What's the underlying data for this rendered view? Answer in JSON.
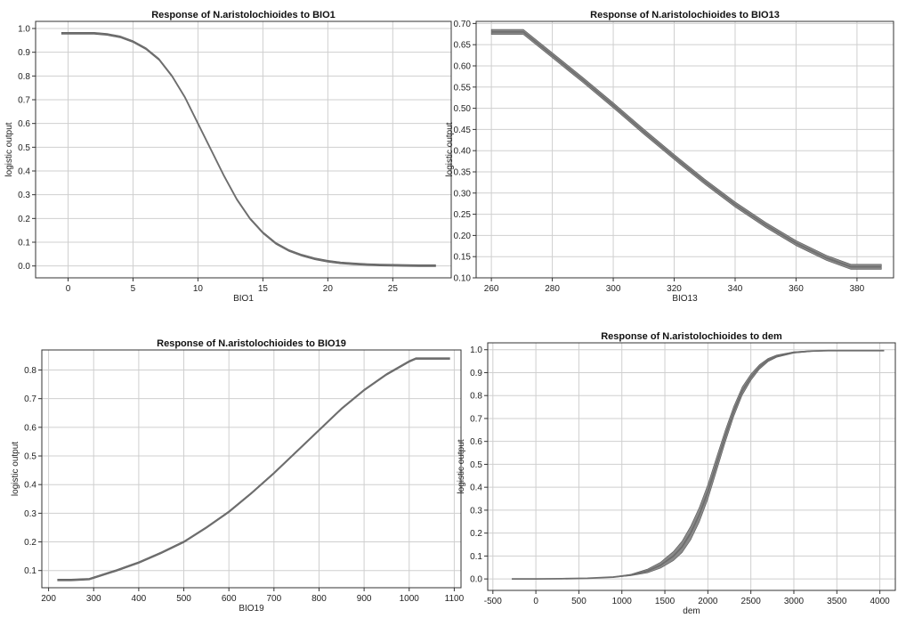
{
  "chart_data": [
    {
      "type": "line",
      "title": "Response of N.aristolochioides to BIO1",
      "xlabel": "BIO1",
      "ylabel": "logistic output",
      "xlim": [
        -2.5,
        29.5
      ],
      "ylim": [
        -0.05,
        1.03
      ],
      "xticks": [
        0,
        5,
        10,
        15,
        20,
        25
      ],
      "yticks": [
        0.0,
        0.1,
        0.2,
        0.3,
        0.4,
        0.5,
        0.6,
        0.7,
        0.8,
        0.9,
        1.0
      ],
      "ytick_decimals": 1,
      "grid": true,
      "band_width": 0.004,
      "series": [
        {
          "color": "#6e6e6e",
          "x": [
            -0.5,
            0,
            1,
            2,
            3,
            4,
            5,
            6,
            7,
            8,
            9,
            10,
            11,
            12,
            13,
            14,
            15,
            16,
            17,
            18,
            19,
            20,
            21,
            22,
            23,
            24,
            25,
            26,
            27,
            28.3
          ],
          "y": [
            0.98,
            0.98,
            0.98,
            0.98,
            0.975,
            0.965,
            0.945,
            0.915,
            0.87,
            0.8,
            0.71,
            0.6,
            0.49,
            0.38,
            0.28,
            0.2,
            0.14,
            0.095,
            0.065,
            0.045,
            0.03,
            0.02,
            0.013,
            0.009,
            0.006,
            0.004,
            0.003,
            0.002,
            0.001,
            0.001
          ]
        }
      ]
    },
    {
      "type": "line",
      "title": "Response of N.aristolochioides to BIO13",
      "xlabel": "BIO13",
      "ylabel": "logistic output",
      "xlim": [
        255,
        392
      ],
      "ylim": [
        0.1,
        0.705
      ],
      "xticks": [
        260,
        280,
        300,
        320,
        340,
        360,
        380
      ],
      "yticks": [
        0.1,
        0.15,
        0.2,
        0.25,
        0.3,
        0.35,
        0.4,
        0.45,
        0.5,
        0.55,
        0.6,
        0.65,
        0.7
      ],
      "ytick_decimals": 2,
      "grid": true,
      "band_width": 0.006,
      "series": [
        {
          "color": "#6e6e6e",
          "x": [
            260,
            265,
            270.5,
            280,
            290,
            300,
            310,
            320,
            330,
            340,
            350,
            360,
            370,
            378,
            388
          ],
          "y": [
            0.68,
            0.68,
            0.68,
            0.625,
            0.567,
            0.507,
            0.445,
            0.385,
            0.327,
            0.273,
            0.225,
            0.182,
            0.147,
            0.126,
            0.126
          ]
        }
      ]
    },
    {
      "type": "line",
      "title": "Response of N.aristolochioides to BIO19",
      "xlabel": "BIO19",
      "ylabel": "logistic output",
      "xlim": [
        185,
        1115
      ],
      "ylim": [
        0.04,
        0.87
      ],
      "xticks": [
        200,
        300,
        400,
        500,
        600,
        700,
        800,
        900,
        1000,
        1100
      ],
      "yticks": [
        0.1,
        0.2,
        0.3,
        0.4,
        0.5,
        0.6,
        0.7,
        0.8
      ],
      "ytick_decimals": 1,
      "grid": true,
      "band_width": 0.003,
      "series": [
        {
          "color": "#6e6e6e",
          "x": [
            220,
            250,
            290,
            350,
            400,
            450,
            500,
            550,
            600,
            650,
            700,
            750,
            800,
            850,
            900,
            950,
            1000,
            1015,
            1090
          ],
          "y": [
            0.067,
            0.067,
            0.07,
            0.1,
            0.128,
            0.162,
            0.2,
            0.25,
            0.305,
            0.37,
            0.44,
            0.515,
            0.59,
            0.665,
            0.73,
            0.785,
            0.83,
            0.84,
            0.84
          ]
        }
      ]
    },
    {
      "type": "line",
      "title": "Response of N.aristolochioides to dem",
      "xlabel": "dem",
      "ylabel": "logistic output",
      "xlim": [
        -560,
        4180
      ],
      "ylim": [
        -0.05,
        1.03
      ],
      "xticks": [
        -500,
        0,
        500,
        1000,
        1500,
        2000,
        2500,
        3000,
        3500,
        4000
      ],
      "yticks": [
        0.0,
        0.1,
        0.2,
        0.3,
        0.4,
        0.5,
        0.6,
        0.7,
        0.8,
        0.9,
        1.0
      ],
      "ytick_decimals": 1,
      "grid": true,
      "band_width": 0.004,
      "series": [
        {
          "color": "#6e6e6e",
          "x": [
            -280,
            0,
            300,
            600,
            900,
            1100,
            1300,
            1450,
            1600,
            1700,
            1800,
            1900,
            2000,
            2100,
            2200,
            2300,
            2400,
            2500,
            2600,
            2700,
            2800,
            3000,
            3200,
            3400,
            3700,
            4050
          ],
          "y": [
            0,
            0,
            0.001,
            0.003,
            0.008,
            0.017,
            0.035,
            0.06,
            0.1,
            0.14,
            0.2,
            0.28,
            0.38,
            0.5,
            0.62,
            0.73,
            0.82,
            0.88,
            0.925,
            0.955,
            0.972,
            0.988,
            0.994,
            0.996,
            0.996,
            0.996
          ],
          "band_width": [
            0,
            0,
            0,
            0,
            0.001,
            0.003,
            0.008,
            0.013,
            0.02,
            0.025,
            0.03,
            0.032,
            0.032,
            0.03,
            0.026,
            0.022,
            0.018,
            0.014,
            0.01,
            0.007,
            0.005,
            0.003,
            0.002,
            0.001,
            0,
            0
          ]
        }
      ]
    }
  ]
}
